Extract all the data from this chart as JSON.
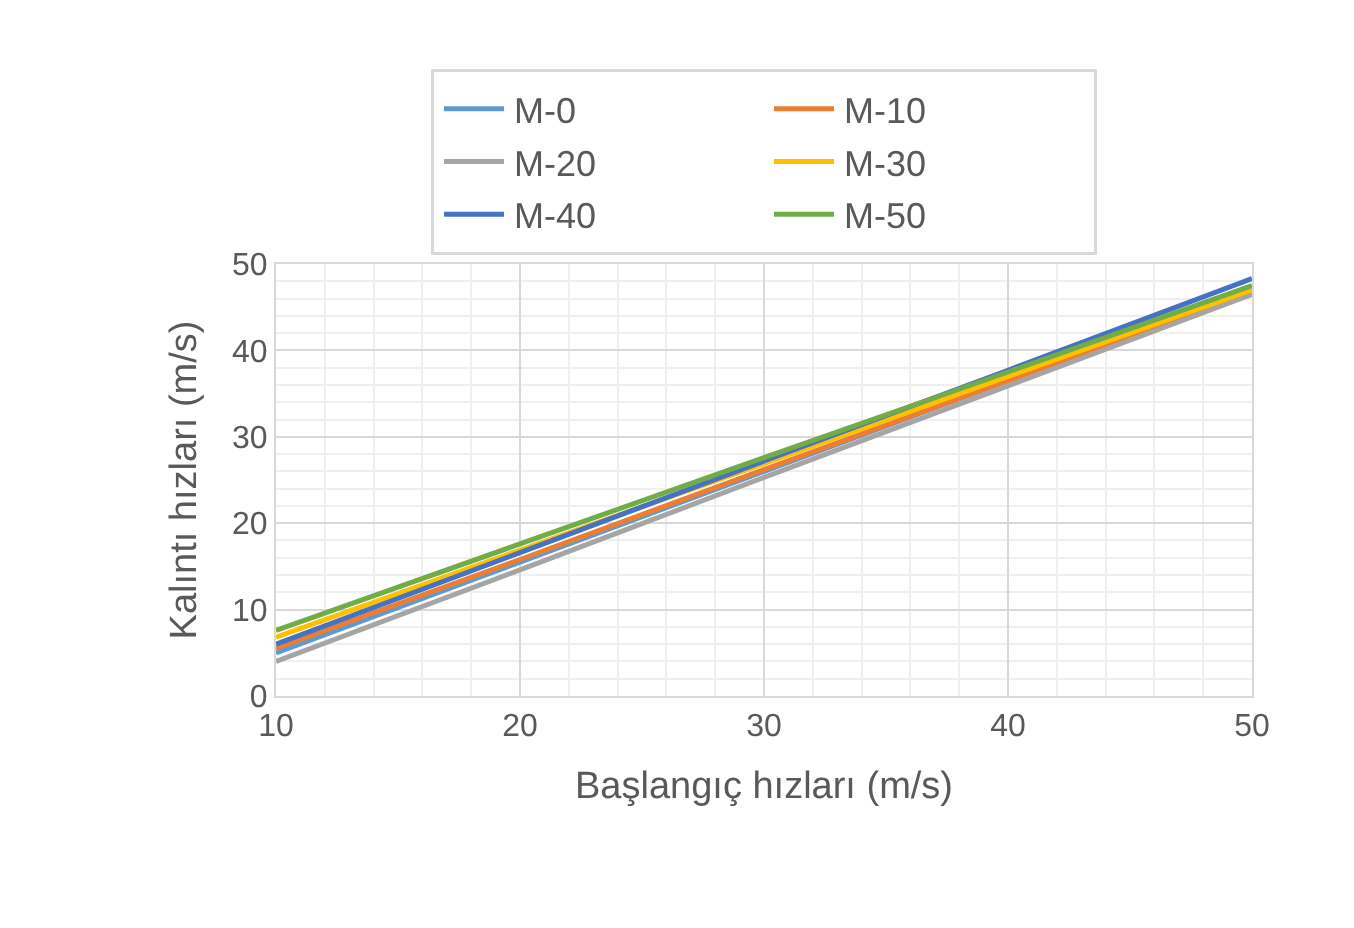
{
  "chart_data": {
    "type": "line",
    "xlabel": "Başlangıç hızları (m/s)",
    "ylabel": "Kalıntı hızları (m/s)",
    "x": [
      10,
      20,
      30,
      40,
      50
    ],
    "series": [
      {
        "name": "M-0",
        "color": "#5b9bd5",
        "values": [
          5,
          15.5,
          26,
          36.5,
          47
        ]
      },
      {
        "name": "M-10",
        "color": "#ed7d31",
        "values": [
          5.5,
          15.8,
          26.2,
          36.5,
          46.8
        ]
      },
      {
        "name": "M-20",
        "color": "#a5a5a5",
        "values": [
          4,
          14.6,
          25.3,
          35.9,
          46.5
        ]
      },
      {
        "name": "M-30",
        "color": "#ffc000",
        "values": [
          6.8,
          16.9,
          26.9,
          37,
          47
        ]
      },
      {
        "name": "M-40",
        "color": "#4472c4",
        "values": [
          6,
          16.6,
          27.2,
          37.7,
          48.3
        ]
      },
      {
        "name": "M-50",
        "color": "#70ad47",
        "values": [
          7.6,
          17.6,
          27.6,
          37.5,
          47.5
        ]
      }
    ],
    "xlim": [
      10,
      50
    ],
    "xticks": [
      10,
      20,
      30,
      40,
      50
    ],
    "ylim": [
      0,
      50
    ],
    "yticks": [
      0,
      10,
      20,
      30,
      40,
      50
    ],
    "grid": true,
    "legend": "top",
    "marker": "none",
    "line_style": "solid"
  }
}
